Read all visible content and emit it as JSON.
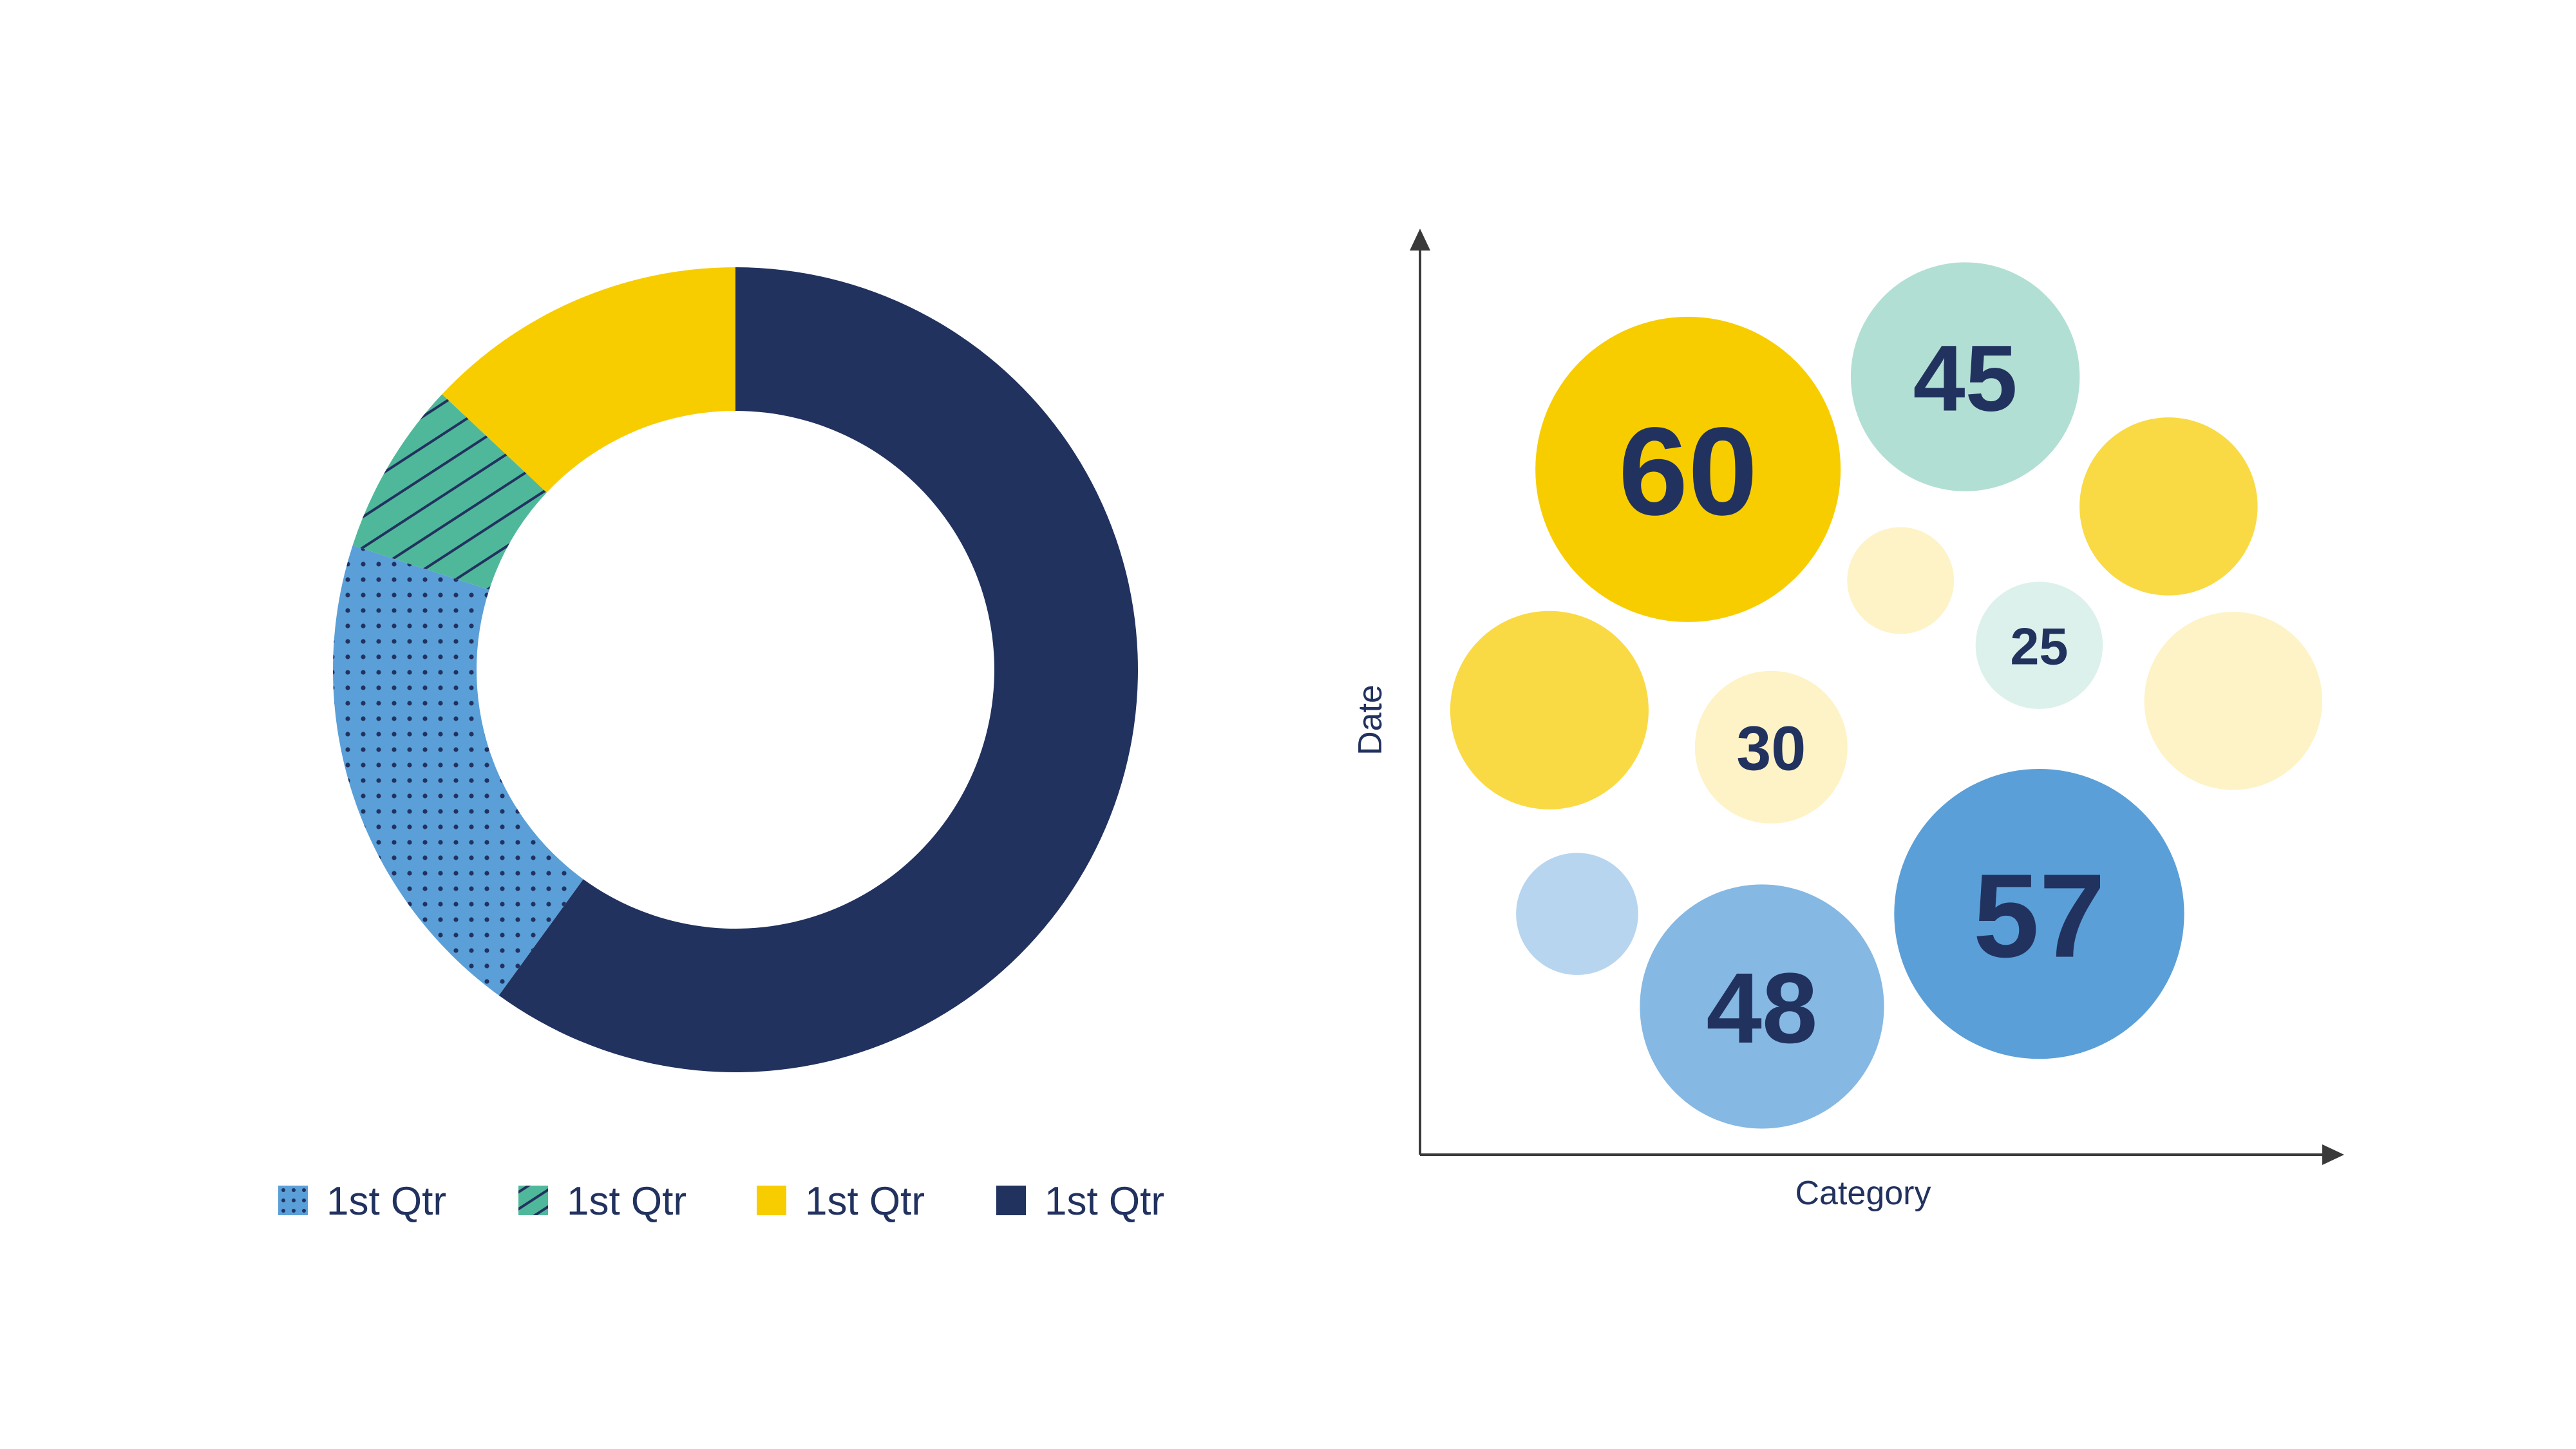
{
  "chart_data": [
    {
      "type": "pie",
      "style": "donut",
      "slices": [
        {
          "label": "1st Qtr",
          "value": 60,
          "color": "#22325f",
          "pattern": "solid"
        },
        {
          "label": "1st Qtr",
          "value": 20,
          "color": "#5a9fd8",
          "pattern": "dots"
        },
        {
          "label": "1st Qtr",
          "value": 7,
          "color": "#4fb89a",
          "pattern": "diagonal-lines"
        },
        {
          "label": "1st Qtr",
          "value": 13,
          "color": "#f7cd00",
          "pattern": "solid"
        }
      ],
      "legend": {
        "placement": "bottom",
        "entries": [
          {
            "label": "1st Qtr",
            "color": "#5a9fd8",
            "pattern": "dots"
          },
          {
            "label": "1st Qtr",
            "color": "#4fb89a",
            "pattern": "diagonal-lines"
          },
          {
            "label": "1st Qtr",
            "color": "#f7cd00",
            "pattern": "solid"
          },
          {
            "label": "1st Qtr",
            "color": "#22325f",
            "pattern": "solid"
          }
        ]
      }
    },
    {
      "type": "scatter",
      "style": "bubble",
      "xlabel": "Category",
      "ylabel": "Date",
      "xlim": [
        0,
        100
      ],
      "ylim": [
        0,
        100
      ],
      "points": [
        {
          "x": 29,
          "y": 74,
          "size": 60,
          "label": "60",
          "color": "#f7cd00"
        },
        {
          "x": 59,
          "y": 84,
          "size": 45,
          "label": "45",
          "color": "#b2dfd3"
        },
        {
          "x": 81,
          "y": 70,
          "size": 35,
          "label": "",
          "color": "#f9da45"
        },
        {
          "x": 52,
          "y": 62,
          "size": 21,
          "label": "",
          "color": "#fdf3c6"
        },
        {
          "x": 67,
          "y": 55,
          "size": 25,
          "label": "25",
          "color": "#dcf1eb"
        },
        {
          "x": 88,
          "y": 49,
          "size": 35,
          "label": "",
          "color": "#fdf3c6"
        },
        {
          "x": 14,
          "y": 48,
          "size": 39,
          "label": "",
          "color": "#f9da45"
        },
        {
          "x": 38,
          "y": 44,
          "size": 30,
          "label": "30",
          "color": "#fdf3c6"
        },
        {
          "x": 67,
          "y": 26,
          "size": 57,
          "label": "57",
          "color": "#5a9fd8"
        },
        {
          "x": 17,
          "y": 26,
          "size": 24,
          "label": "",
          "color": "#b7d5ef"
        },
        {
          "x": 37,
          "y": 16,
          "size": 48,
          "label": "48",
          "color": "#85b8e3"
        }
      ],
      "axis_color": "#3a3a3a"
    }
  ]
}
